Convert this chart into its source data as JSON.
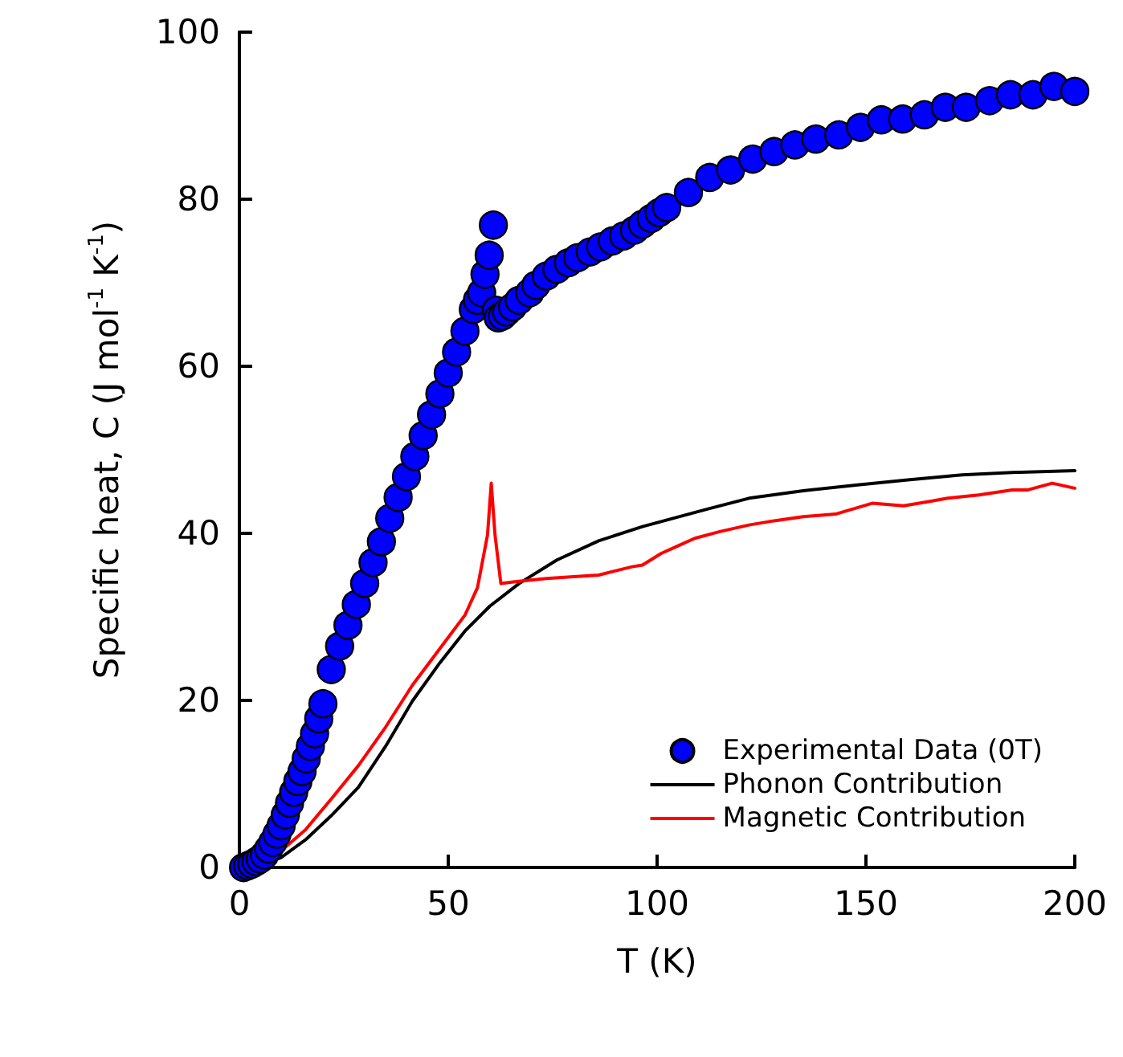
{
  "chart_data": {
    "type": "scatter",
    "xlabel": "T (K)",
    "ylabel": "Specific heat, C (J mol$^{-1}$ K$^{-1}$)",
    "xlim": [
      0,
      200
    ],
    "xticks": [
      0,
      50,
      100,
      150,
      200
    ],
    "ylim": [
      0,
      100
    ],
    "yticks": [
      0,
      20,
      40,
      60,
      80,
      100
    ],
    "grid": false,
    "legend": "bottom right",
    "marker": "circle",
    "series": [
      {
        "name": "Experimental Data (0T)",
        "color": "#0000ff",
        "x": [
          1,
          2,
          3,
          4,
          5,
          6,
          7,
          8,
          9,
          10,
          11,
          12,
          13,
          14,
          15,
          16,
          17,
          18,
          19,
          20,
          22,
          24,
          26,
          28,
          30,
          32,
          34,
          36,
          38,
          40,
          42,
          44,
          46,
          48,
          50,
          52,
          54,
          56,
          57,
          58,
          58.8,
          59.8,
          60.8,
          61.5,
          62,
          63,
          64,
          65.4,
          67,
          69.5,
          71,
          73.5,
          76,
          78.8,
          81,
          84,
          86.5,
          89.3,
          92,
          94.6,
          96.5,
          98.6,
          100.5,
          102.3,
          107.5,
          112.6,
          117.6,
          122.9,
          128,
          133,
          138,
          143.5,
          148.7,
          153.7,
          158.8,
          164,
          169,
          174,
          179.6,
          184.6,
          190,
          195,
          200
        ],
        "values": [
          0,
          0.2,
          0.4,
          0.7,
          1,
          1.5,
          2.2,
          3,
          4,
          5,
          6.3,
          7.7,
          9,
          10.3,
          11.5,
          13,
          14.5,
          16,
          17.8,
          19.6,
          23.7,
          26.5,
          29,
          31.5,
          34,
          36.5,
          39,
          41.8,
          44.3,
          46.8,
          49.2,
          51.7,
          54.2,
          56.7,
          59.2,
          61.7,
          64.2,
          66.8,
          67.9,
          68.8,
          71,
          73.3,
          76.9,
          66.7,
          65.8,
          66,
          66.5,
          67.1,
          67.9,
          68.8,
          69.7,
          70.8,
          71.6,
          72.4,
          73,
          73.7,
          74.3,
          75,
          75.6,
          76.3,
          77,
          77.7,
          78.4,
          79,
          80.8,
          82.6,
          83.5,
          84.8,
          85.7,
          86.5,
          87.2,
          87.7,
          88.6,
          89.5,
          89.6,
          90.1,
          91,
          91,
          91.8,
          92.5,
          92.5,
          93.5,
          92.9
        ]
      },
      {
        "name": "Phonon Contribution",
        "type": "line",
        "color": "#000000",
        "marker": "none",
        "line_style": "solid",
        "x": [
          2,
          5,
          10,
          15.8,
          22,
          28.5,
          35,
          41.4,
          48,
          54,
          60,
          67,
          76,
          86,
          96.5,
          112,
          122,
          135,
          148,
          160,
          173,
          186,
          200
        ],
        "values": [
          0,
          0.2,
          1.2,
          3.3,
          6.2,
          9.6,
          14.5,
          19.9,
          24.5,
          28.3,
          31.3,
          34,
          36.8,
          39.1,
          40.8,
          42.9,
          44.2,
          45.1,
          45.8,
          46.4,
          47,
          47.3,
          47.5
        ]
      },
      {
        "name": "Magnetic Contribution",
        "type": "line",
        "color": "#ff0000",
        "marker": "none",
        "line_style": "solid",
        "x": [
          10,
          15.8,
          22,
          28.5,
          35,
          41.4,
          48,
          54,
          57,
          59.4,
          60.3,
          61.2,
          62.6,
          66,
          73.5,
          80,
          86,
          94,
          96.5,
          101,
          105,
          109,
          115,
          122,
          128,
          135,
          142.7,
          151.5,
          159,
          165,
          169.6,
          177,
          185,
          188.8,
          194.6,
          200
        ],
        "values": [
          2,
          4.5,
          8.2,
          12.2,
          16.8,
          21.8,
          26.2,
          30.2,
          33.5,
          39.8,
          46,
          39.8,
          34,
          34.2,
          34.6,
          34.8,
          35,
          36,
          36.2,
          37.6,
          38.5,
          39.4,
          40.2,
          41,
          41.5,
          42,
          42.3,
          43.6,
          43.3,
          43.8,
          44.2,
          44.6,
          45.2,
          45.2,
          46,
          45.4
        ]
      }
    ]
  }
}
